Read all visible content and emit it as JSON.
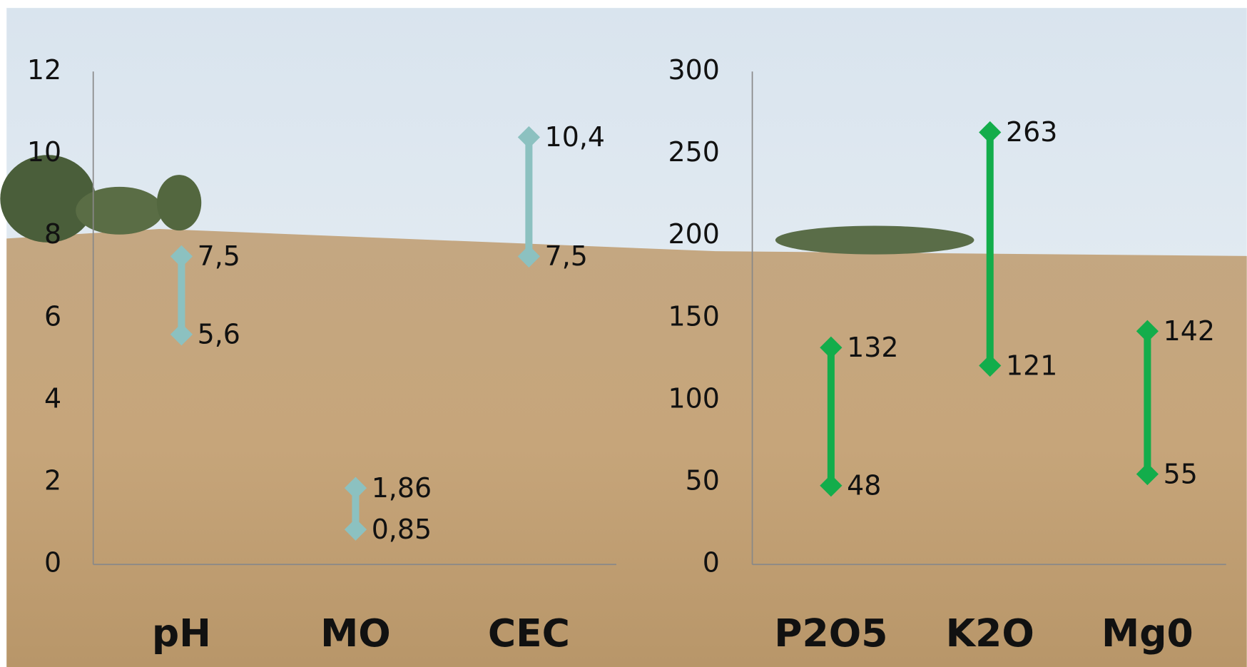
{
  "chart_data": [
    {
      "type": "range",
      "categories": [
        "pH",
        "MO",
        "CEC"
      ],
      "series": [
        {
          "color": "#8cc1c0",
          "values": [
            5.6,
            0.85,
            7.5
          ],
          "value_labels": [
            "5,6",
            "0,85",
            "7,5"
          ]
        },
        {
          "color": "#8cc1c0",
          "values": [
            7.5,
            1.86,
            10.4
          ],
          "value_labels": [
            "7,5",
            "1,86",
            "10,4"
          ]
        }
      ],
      "ylim": [
        0,
        12
      ],
      "yticks": [
        0,
        2,
        4,
        6,
        8,
        10,
        12
      ]
    },
    {
      "type": "range",
      "categories": [
        "P2O5",
        "K2O",
        "Mg0"
      ],
      "series": [
        {
          "color": "#13ad4b",
          "values": [
            48,
            121,
            55
          ]
        },
        {
          "color": "#13ad4b",
          "values": [
            132,
            263,
            142
          ]
        }
      ],
      "ylim": [
        0,
        300
      ],
      "yticks": [
        0,
        50,
        100,
        150,
        200,
        250,
        300
      ]
    }
  ]
}
